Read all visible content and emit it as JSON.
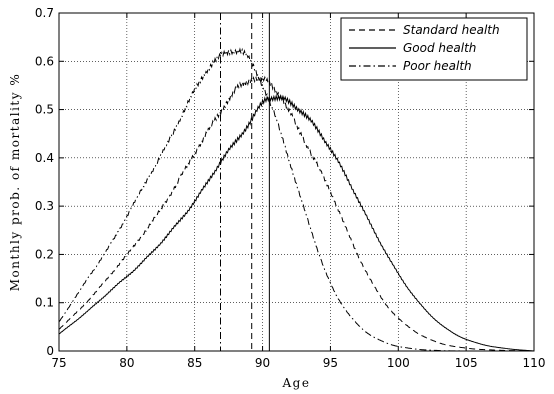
{
  "chart_data": {
    "type": "line",
    "xlabel": "Age",
    "ylabel": "Monthly prob. of mortality %",
    "xlim": [
      75,
      110
    ],
    "ylim": [
      0,
      0.7
    ],
    "x_ticks": [
      "75",
      "80",
      "85",
      "90",
      "95",
      "100",
      "105",
      "110"
    ],
    "y_ticks": [
      "0",
      "0.1",
      "0.2",
      "0.3",
      "0.4",
      "0.5",
      "0.6",
      "0.7"
    ],
    "grid": "dotted",
    "legend_position": "top-right",
    "series": [
      {
        "name": "Standard health",
        "style": "dashed",
        "color": "#000000",
        "x": [
          75,
          77,
          79,
          81,
          83,
          85,
          87,
          88,
          89,
          89.5,
          91,
          93,
          95,
          97,
          99,
          101,
          103,
          105,
          107,
          110
        ],
        "y": [
          0.045,
          0.1,
          0.165,
          0.235,
          0.315,
          0.41,
          0.5,
          0.54,
          0.56,
          0.565,
          0.54,
          0.44,
          0.33,
          0.2,
          0.1,
          0.045,
          0.017,
          0.006,
          0.002,
          0.0
        ],
        "marker_age": 89.2
      },
      {
        "name": "Good health",
        "style": "solid",
        "color": "#000000",
        "x": [
          75,
          77,
          79,
          81,
          83,
          85,
          87,
          89,
          90.5,
          92,
          94,
          96,
          98,
          100,
          102,
          104,
          106,
          108,
          110
        ],
        "y": [
          0.035,
          0.08,
          0.13,
          0.18,
          0.24,
          0.31,
          0.395,
          0.47,
          0.525,
          0.515,
          0.46,
          0.37,
          0.26,
          0.16,
          0.085,
          0.038,
          0.015,
          0.005,
          0.0
        ],
        "marker_age": 90.5
      },
      {
        "name": "Poor health",
        "style": "dash-dot",
        "color": "#000000",
        "x": [
          75,
          77,
          79,
          81,
          83,
          85,
          86,
          87,
          88,
          88.7,
          89.5,
          91,
          93,
          95,
          97,
          99,
          101,
          103,
          105
        ],
        "y": [
          0.06,
          0.145,
          0.23,
          0.33,
          0.43,
          0.54,
          0.585,
          0.612,
          0.622,
          0.615,
          0.58,
          0.48,
          0.3,
          0.14,
          0.055,
          0.018,
          0.005,
          0.001,
          0.0
        ],
        "marker_age": 86.9
      }
    ]
  }
}
